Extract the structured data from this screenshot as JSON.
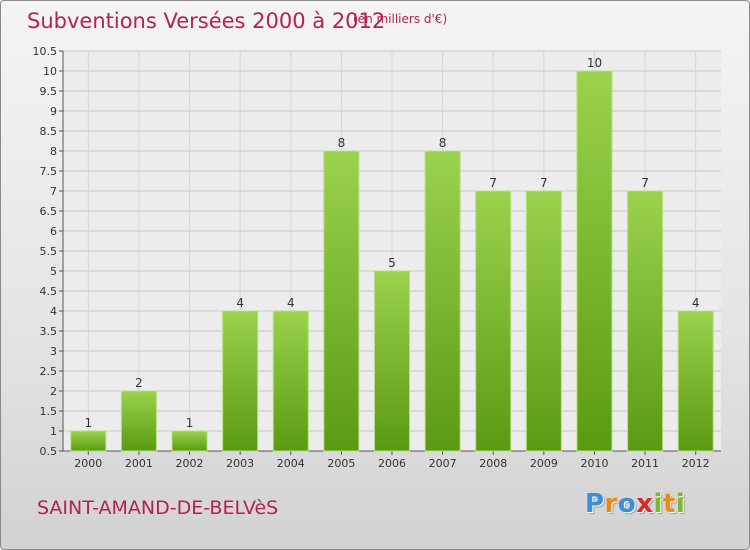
{
  "header": {
    "title": "Subventions Versées 2000 à 2012",
    "subtitle": "(en milliers d'€)"
  },
  "footer": {
    "commune": "SAINT-AMAND-DE-BELVèS",
    "brand": "Proxiti"
  },
  "colors": {
    "title": "#b5224f",
    "bar_top": "#9bd24e",
    "bar_bottom": "#5a9a12",
    "logo_letters": [
      "#3a8fd8",
      "#e98a17",
      "#3a8fd8",
      "#d92a2a",
      "#7cb82f",
      "#e98a17",
      "#7cb82f"
    ]
  },
  "chart_data": {
    "type": "bar",
    "title": "Subventions Versées 2000 à 2012",
    "subtitle": "(en milliers d'€)",
    "categories": [
      "2000",
      "2001",
      "2002",
      "2003",
      "2004",
      "2005",
      "2006",
      "2007",
      "2008",
      "2009",
      "2010",
      "2011",
      "2012"
    ],
    "values": [
      1,
      2,
      1,
      4,
      4,
      8,
      5,
      8,
      7,
      7,
      10,
      7,
      4
    ],
    "data_labels": [
      "1",
      "2",
      "1",
      "4",
      "4",
      "8",
      "5",
      "8",
      "7",
      "7",
      "10",
      "7",
      "4"
    ],
    "ylim": [
      0.5,
      10.5
    ],
    "yticks": [
      0.5,
      1,
      1.5,
      2,
      2.5,
      3,
      3.5,
      4,
      4.5,
      5,
      5.5,
      6,
      6.5,
      7,
      7.5,
      8,
      8.5,
      9,
      9.5,
      10,
      10.5
    ],
    "ytick_labels": [
      "0.5",
      "1",
      "1.5",
      "2",
      "2.5",
      "3",
      "3.5",
      "4",
      "4.5",
      "5",
      "5.5",
      "6",
      "6.5",
      "7",
      "7.5",
      "8",
      "8.5",
      "9",
      "9.5",
      "10",
      "10.5"
    ],
    "grid": true,
    "xlabel": "",
    "ylabel": ""
  }
}
